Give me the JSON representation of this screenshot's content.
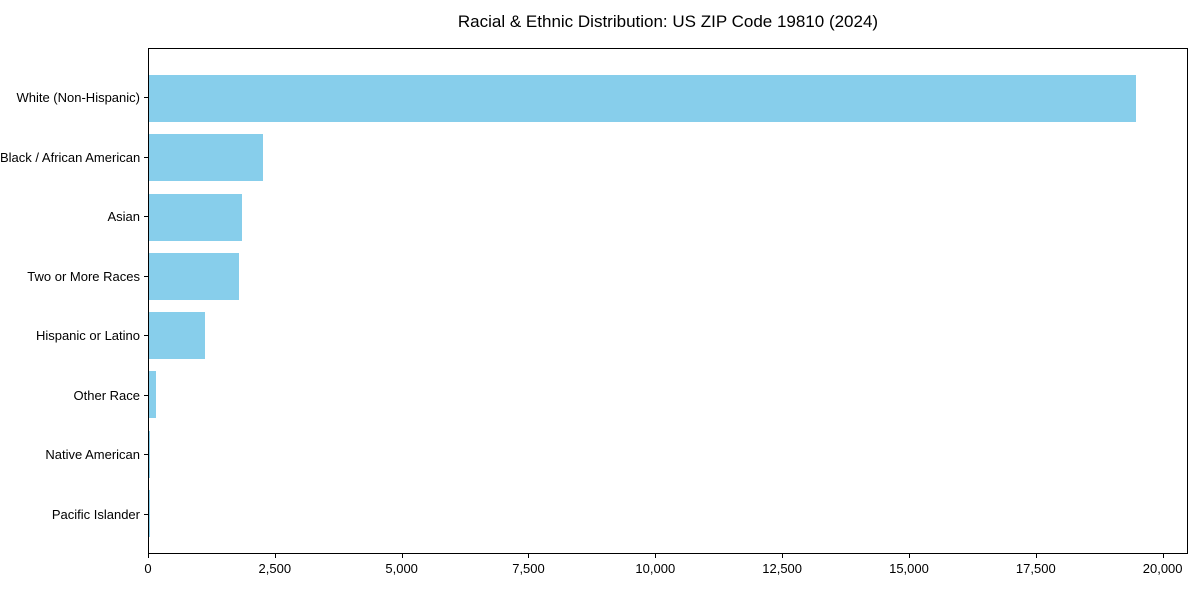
{
  "chart_data": {
    "type": "bar",
    "orientation": "horizontal",
    "title": "Racial & Ethnic Distribution: US ZIP Code 19810 (2024)",
    "categories": [
      "White (Non-Hispanic)",
      "Black / African American",
      "Asian",
      "Two or More Races",
      "Hispanic or Latino",
      "Other Race",
      "Native American",
      "Pacific Islander"
    ],
    "values": [
      19500,
      2260,
      1830,
      1780,
      1110,
      140,
      20,
      10
    ],
    "xlabel": "",
    "ylabel": "",
    "xlim": [
      0,
      20500
    ],
    "xticks": [
      0,
      2500,
      5000,
      7500,
      10000,
      12500,
      15000,
      17500,
      20000
    ],
    "xtick_labels": [
      "0",
      "2,500",
      "5,000",
      "7,500",
      "10,000",
      "12,500",
      "15,000",
      "17,500",
      "20,000"
    ],
    "bar_color": "#87CEEB",
    "spine_color": "#000000",
    "text_color": "#000000",
    "background_color": "#ffffff",
    "grid": false,
    "legend": null
  }
}
